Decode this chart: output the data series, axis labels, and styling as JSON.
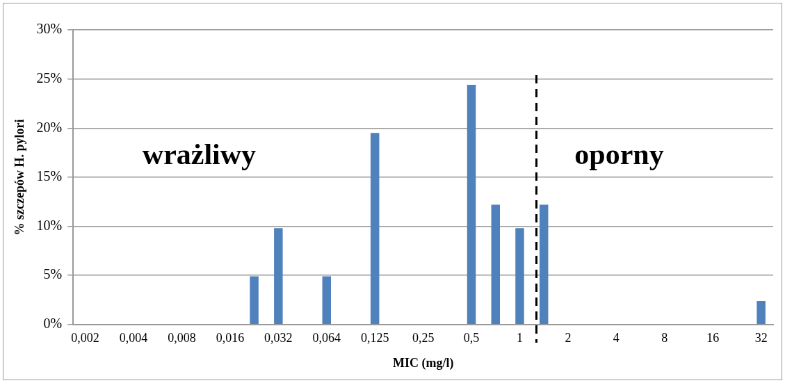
{
  "chart_data": {
    "type": "bar",
    "xlabel": "MIC (mg/l)",
    "ylabel": "% szczepów H. pylori",
    "categories": [
      "0,002",
      null,
      "0,004",
      null,
      "0,008",
      null,
      "0,016",
      null,
      "0,032",
      null,
      "0,064",
      null,
      "0,125",
      null,
      "0,25",
      null,
      "0,5",
      null,
      "1",
      null,
      "2",
      null,
      "4",
      null,
      "8",
      null,
      "16",
      null,
      "32"
    ],
    "values": [
      0,
      0,
      0,
      0,
      0,
      0,
      0,
      4.9,
      9.8,
      0,
      4.9,
      0,
      19.5,
      0,
      0,
      0,
      24.4,
      12.2,
      9.8,
      12.2,
      0,
      0,
      0,
      0,
      0,
      0,
      0,
      0,
      2.4
    ],
    "color": "#4f81bd",
    "ylim": [
      0,
      30
    ],
    "yticks": [
      {
        "value": 0,
        "label": "0%"
      },
      {
        "value": 5,
        "label": "5%"
      },
      {
        "value": 10,
        "label": "10%"
      },
      {
        "value": 15,
        "label": "15%"
      },
      {
        "value": 20,
        "label": "20%"
      },
      {
        "value": 25,
        "label": "25%"
      },
      {
        "value": 30,
        "label": "30%"
      }
    ],
    "grid": "y",
    "legend": false,
    "annotations": [
      "wrażliwy",
      "oporny"
    ]
  }
}
